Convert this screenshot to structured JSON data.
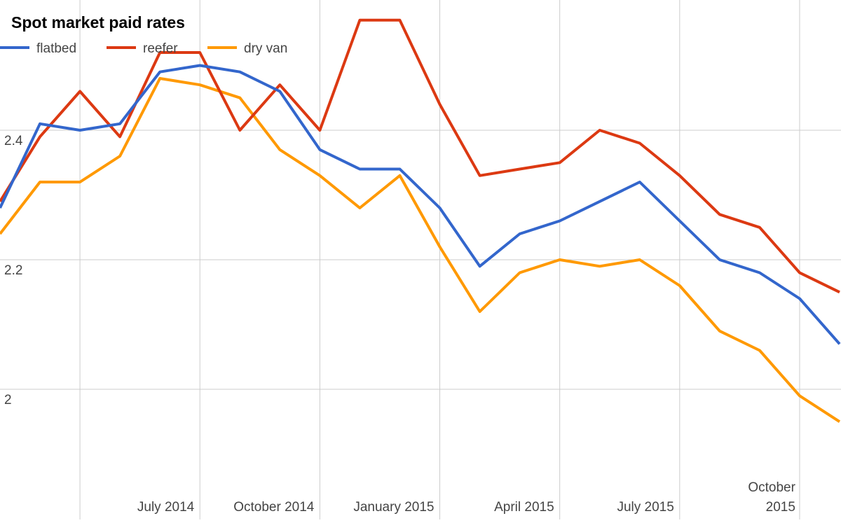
{
  "chart_data": {
    "type": "line",
    "title": "Spot market paid rates",
    "categories": [
      null,
      null,
      null,
      null,
      null,
      "July 2014",
      null,
      null,
      "October 2014",
      null,
      null,
      "January 2015",
      null,
      null,
      "April 2015",
      null,
      null,
      "July 2015",
      null,
      null,
      "October 2015",
      null
    ],
    "series": [
      {
        "name": "flatbed",
        "color": "#3366cc",
        "values": [
          2.28,
          2.41,
          2.4,
          2.41,
          2.49,
          2.5,
          2.49,
          2.46,
          2.37,
          2.34,
          2.34,
          2.28,
          2.19,
          2.24,
          2.26,
          2.29,
          2.32,
          2.26,
          2.2,
          2.18,
          2.14,
          2.07
        ]
      },
      {
        "name": "reefer",
        "color": "#dc3912",
        "values": [
          2.29,
          2.39,
          2.46,
          2.39,
          2.52,
          2.52,
          2.4,
          2.47,
          2.4,
          2.57,
          2.57,
          2.44,
          2.33,
          2.34,
          2.35,
          2.4,
          2.38,
          2.33,
          2.27,
          2.25,
          2.18,
          2.15
        ]
      },
      {
        "name": "dry van",
        "color": "#ff9900",
        "values": [
          2.24,
          2.32,
          2.32,
          2.36,
          2.48,
          2.47,
          2.45,
          2.37,
          2.33,
          2.28,
          2.33,
          2.22,
          2.12,
          2.18,
          2.2,
          2.19,
          2.2,
          2.16,
          2.09,
          2.06,
          1.99,
          1.95
        ]
      }
    ],
    "ylim": [
      1.8,
      2.6
    ],
    "yticks": [
      2,
      2.2,
      2.4
    ],
    "grid": true,
    "legend": "top-left"
  }
}
